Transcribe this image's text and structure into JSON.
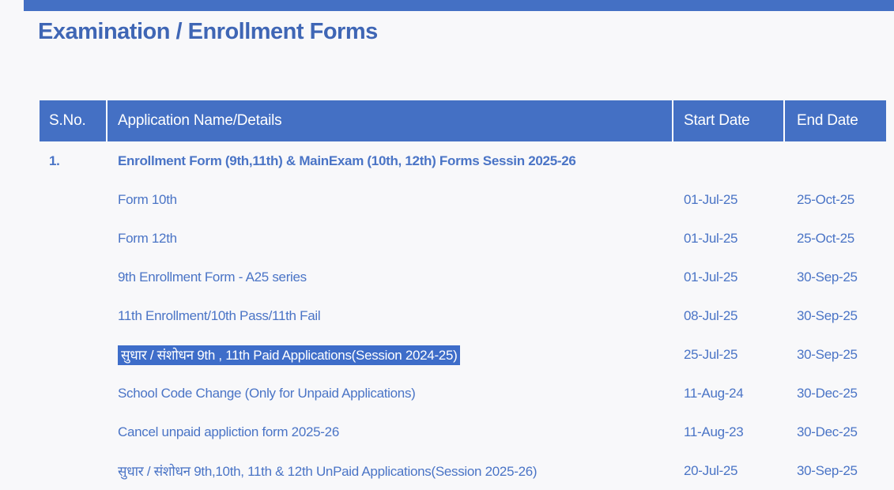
{
  "page": {
    "title": "Examination / Enrollment Forms"
  },
  "colors": {
    "accent_blue": "#4470c4",
    "header_bg": "#4470c4",
    "header_text": "#ffffff",
    "body_text_blue": "#4a74c6",
    "title_blue": "#3f66b5",
    "highlight_bg": "#3e6dc9",
    "highlight_text": "#ffffff",
    "page_bg": "#f8f8fa"
  },
  "table": {
    "headers": [
      "S.No.",
      "Application Name/Details",
      "Start Date",
      "End Date"
    ],
    "rows": [
      {
        "sno": "1.",
        "name": "Enrollment Form (9th,11th) & MainExam (10th, 12th) Forms Sessin 2025-26",
        "start": "",
        "end": "",
        "bold": true,
        "highlighted": false
      },
      {
        "sno": "",
        "name": "Form 10th",
        "start": "01-Jul-25",
        "end": "25-Oct-25",
        "bold": false,
        "highlighted": false
      },
      {
        "sno": "",
        "name": "Form 12th",
        "start": "01-Jul-25",
        "end": "25-Oct-25",
        "bold": false,
        "highlighted": false
      },
      {
        "sno": "",
        "name": "9th Enrollment Form - A25 series",
        "start": "01-Jul-25",
        "end": "30-Sep-25",
        "bold": false,
        "highlighted": false
      },
      {
        "sno": "",
        "name": "11th Enrollment/10th Pass/11th Fail",
        "start": "08-Jul-25",
        "end": "30-Sep-25",
        "bold": false,
        "highlighted": false
      },
      {
        "sno": "",
        "name": "सुधार / संशोधन 9th , 11th Paid Applications(Session 2024-25)",
        "start": "25-Jul-25",
        "end": "30-Sep-25",
        "bold": false,
        "highlighted": true
      },
      {
        "sno": "",
        "name": "School Code Change (Only for Unpaid Applications)",
        "start": "11-Aug-24",
        "end": "30-Dec-25",
        "bold": false,
        "highlighted": false
      },
      {
        "sno": "",
        "name": "Cancel unpaid appliction form 2025-26",
        "start": "11-Aug-23",
        "end": "30-Dec-25",
        "bold": false,
        "highlighted": false
      },
      {
        "sno": "",
        "name": "सुधार / संशोधन 9th,10th, 11th & 12th UnPaid Applications(Session 2025-26)",
        "start": "20-Jul-25",
        "end": "30-Sep-25",
        "bold": false,
        "highlighted": false
      }
    ]
  }
}
